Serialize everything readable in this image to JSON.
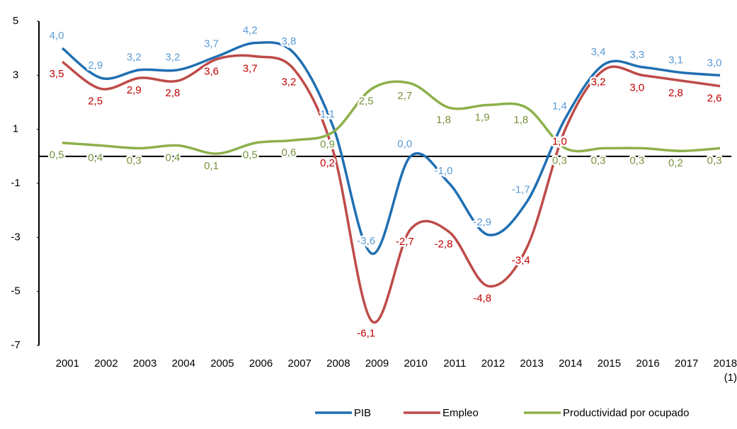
{
  "chart_data": {
    "type": "line",
    "categories": [
      "2001",
      "2002",
      "2003",
      "2004",
      "2005",
      "2006",
      "2007",
      "2008",
      "2009",
      "2010",
      "2011",
      "2012",
      "2013",
      "2014",
      "2015",
      "2016",
      "2017",
      "2018\n(1)"
    ],
    "series": [
      {
        "name": "PIB",
        "color": "#1f6fb2",
        "label_color": "#5b9bd5",
        "values": [
          4.0,
          2.9,
          3.2,
          3.2,
          3.7,
          4.2,
          3.8,
          1.1,
          -3.6,
          0.0,
          -1.0,
          -2.9,
          -1.7,
          1.4,
          3.4,
          3.3,
          3.1,
          3.0
        ],
        "value_labels": [
          "4,0",
          "2,9",
          "3,2",
          "3,2",
          "3,7",
          "4,2",
          "3,8",
          "1,1",
          "-3,6",
          "0,0",
          "-1,0",
          "-2,9",
          "-1,7",
          "1,4",
          "3,4",
          "3,3",
          "3,1",
          "3,0"
        ]
      },
      {
        "name": "Empleo",
        "color": "#be4b48",
        "label_color": "#c00000",
        "values": [
          3.5,
          2.5,
          2.9,
          2.8,
          3.6,
          3.7,
          3.2,
          0.2,
          -6.1,
          -2.7,
          -2.8,
          -4.8,
          -3.4,
          1.0,
          3.2,
          3.0,
          2.8,
          2.6
        ],
        "value_labels": [
          "3,5",
          "2,5",
          "2,9",
          "2,8",
          "3,6",
          "3,7",
          "3,2",
          "0,2",
          "-6,1",
          "-2,7",
          "-2,8",
          "-4,8",
          "-3,4",
          "1,0",
          "3,2",
          "3,0",
          "2,8",
          "2,6"
        ]
      },
      {
        "name": "Productividad por ocupado",
        "color": "#8db04a",
        "label_color": "#77933c",
        "values": [
          0.5,
          0.4,
          0.3,
          0.4,
          0.1,
          0.5,
          0.6,
          0.9,
          2.5,
          2.7,
          1.8,
          1.9,
          1.8,
          0.3,
          0.3,
          0.3,
          0.2,
          0.3
        ],
        "value_labels": [
          "0,5",
          "0,4",
          "0,3",
          "0,4",
          "0,1",
          "0,5",
          "0,6",
          "0,9",
          "2,5",
          "2,7",
          "1,8",
          "1,9",
          "1,8",
          "0,3",
          "0,3",
          "0,3",
          "0,2",
          "0,3"
        ]
      }
    ],
    "ylim": [
      -7,
      5
    ],
    "yticks": [
      5,
      3,
      1,
      -1,
      -3,
      -5,
      -7
    ],
    "legend": "bottom"
  }
}
